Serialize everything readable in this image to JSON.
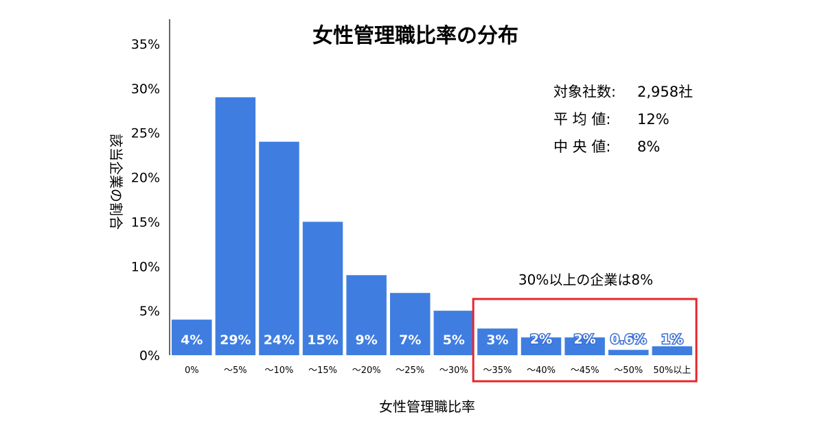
{
  "chart_data": {
    "type": "bar",
    "title": "女性管理職比率の分布",
    "xlabel": "女性管理職比率",
    "ylabel": "該当企業の割合",
    "ylim": [
      0,
      35
    ],
    "y_ticks": [
      "35%",
      "30%",
      "25%",
      "20%",
      "15%",
      "10%",
      "5%",
      "0%"
    ],
    "y_tick_values": [
      35,
      30,
      25,
      20,
      15,
      10,
      5,
      0
    ],
    "categories": [
      "0%",
      "～5%",
      "～10%",
      "～15%",
      "～20%",
      "～25%",
      "～30%",
      "～35%",
      "～40%",
      "～45%",
      "～50%",
      "50%以上"
    ],
    "values": [
      4,
      29,
      24,
      15,
      9,
      7,
      5,
      3,
      2,
      2,
      0.6,
      1
    ],
    "data_labels": [
      "4%",
      "29%",
      "24%",
      "15%",
      "9%",
      "7%",
      "5%",
      "3%",
      "2%",
      "2%",
      "0.6%",
      "1%"
    ],
    "bar_color": "#3f7ee0",
    "highlight_color": "#e8252b",
    "highlight_range": [
      "～35%",
      "50%以上"
    ],
    "annotation": "30%以上の企業は8%",
    "stats": [
      {
        "label": "対象社数:",
        "value": "2,958社"
      },
      {
        "label": "平 均 値:",
        "value": "12%"
      },
      {
        "label": "中 央 値:",
        "value": "8%"
      }
    ],
    "grid": false,
    "legend": "none"
  }
}
